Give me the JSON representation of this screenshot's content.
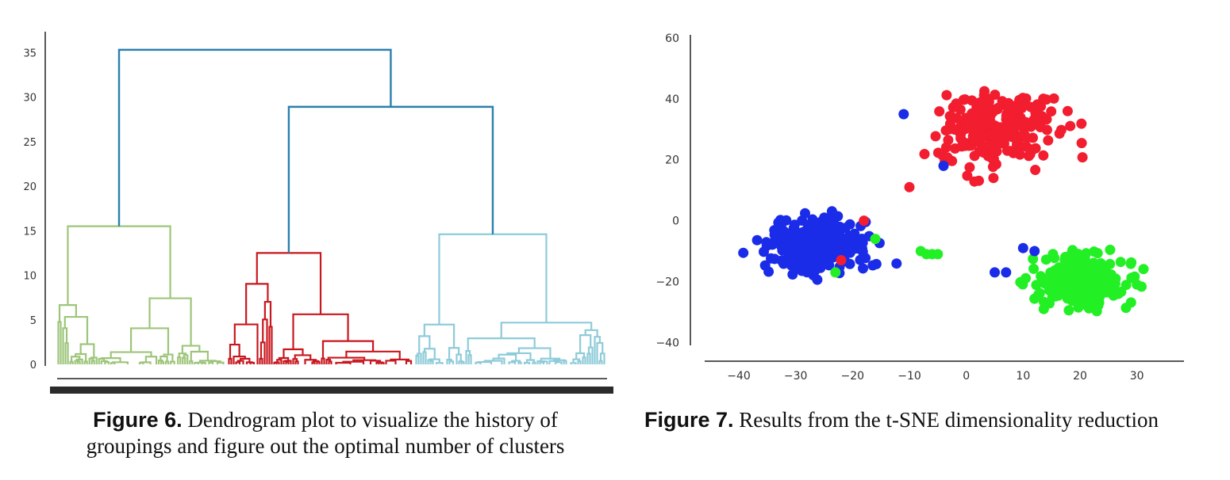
{
  "chart_data": [
    {
      "type": "dendrogram",
      "yticks": [
        "0",
        "5",
        "10",
        "15",
        "20",
        "25",
        "30",
        "35"
      ],
      "ylim": [
        0,
        36
      ],
      "top_merges": [
        {
          "height": 35.3,
          "joins": [
            "cluster-green",
            "merge-red-cyan"
          ]
        },
        {
          "height": 28.9,
          "joins": [
            "cluster-red",
            "cluster-cyan"
          ]
        }
      ],
      "clusters": [
        {
          "id": "cluster-green",
          "color": "#9dc57a",
          "root_height": 15.5
        },
        {
          "id": "cluster-red",
          "color": "#c8171e",
          "root_height": 12.5
        },
        {
          "id": "cluster-cyan",
          "color": "#8ecbd9",
          "root_height": 14.6
        }
      ],
      "link_color": "#2a7fad"
    },
    {
      "type": "scatter",
      "xticks": [
        "−40",
        "−30",
        "−20",
        "−10",
        "0",
        "10",
        "20",
        "30"
      ],
      "yticks": [
        "60",
        "40",
        "20",
        "0",
        "−20",
        "−40"
      ],
      "xlim": [
        -46,
        38
      ],
      "ylim": [
        -42,
        60
      ],
      "colors": {
        "red": "#f21d2f",
        "blue": "#1a2ce8",
        "green": "#22f025"
      },
      "clusters": [
        {
          "color": "red",
          "center": [
            5,
            30
          ],
          "spread": [
            9,
            11
          ],
          "n": 230
        },
        {
          "color": "blue",
          "center": [
            -26,
            -8
          ],
          "spread": [
            8,
            8
          ],
          "n": 260
        },
        {
          "color": "green",
          "center": [
            20,
            -20
          ],
          "spread": [
            8,
            8
          ],
          "n": 240
        }
      ],
      "extra_points": [
        {
          "x": -11,
          "y": 35,
          "c": "blue"
        },
        {
          "x": -4,
          "y": 18,
          "c": "blue"
        },
        {
          "x": -10,
          "y": 11,
          "c": "red"
        },
        {
          "x": -8,
          "y": -10,
          "c": "green"
        },
        {
          "x": -7,
          "y": -11,
          "c": "green"
        },
        {
          "x": -6,
          "y": -11,
          "c": "green"
        },
        {
          "x": -5,
          "y": -11,
          "c": "green"
        },
        {
          "x": -18,
          "y": 0,
          "c": "red"
        },
        {
          "x": -22,
          "y": -13,
          "c": "red"
        },
        {
          "x": -16,
          "y": -6,
          "c": "green"
        },
        {
          "x": -23,
          "y": -17,
          "c": "green"
        },
        {
          "x": 7,
          "y": -17,
          "c": "blue"
        },
        {
          "x": 5,
          "y": -17,
          "c": "blue"
        },
        {
          "x": 10,
          "y": -9,
          "c": "blue"
        },
        {
          "x": 12,
          "y": -10,
          "c": "blue"
        }
      ]
    }
  ],
  "captions": {
    "fig6_label": "Figure 6.",
    "fig6_text": " Dendrogram plot to visualize the history of groupings and figure out the optimal number of clusters",
    "fig7_label": "Figure 7.",
    "fig7_text": " Results from the t-SNE dimensionality reduction"
  }
}
